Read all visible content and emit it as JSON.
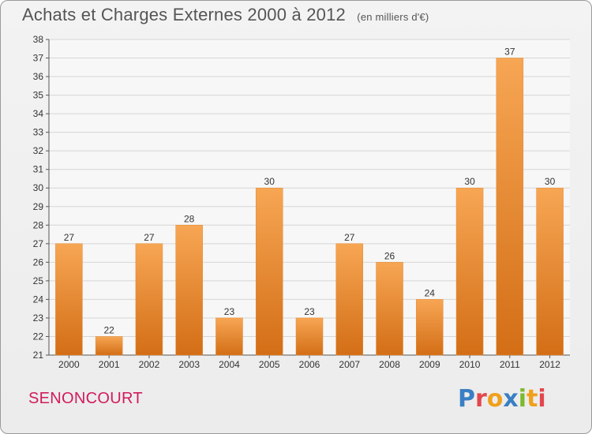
{
  "header": {
    "title": "Achats et Charges Externes 2000 à 2012",
    "unit": "(en milliers d'€)"
  },
  "footer": {
    "place": "SENONCOURT",
    "logo": "Proxiti"
  },
  "colors": {
    "bar_top": "#f7a654",
    "bar_bottom": "#d36e16",
    "place": "#d11b5c",
    "grid": "#d6d6d6",
    "logo_letters": [
      "#3a7fc4",
      "#e2474d",
      "#f0a01c",
      "#3a7fc4",
      "#7cba2c",
      "#f0a01c",
      "#e2474d"
    ]
  },
  "chart_data": {
    "type": "bar",
    "title": "Achats et Charges Externes 2000 à 2012",
    "subtitle": "(en milliers d'€)",
    "categories": [
      "2000",
      "2001",
      "2002",
      "2003",
      "2004",
      "2005",
      "2006",
      "2007",
      "2008",
      "2009",
      "2010",
      "2011",
      "2012"
    ],
    "values": [
      27,
      22,
      27,
      28,
      23,
      30,
      23,
      27,
      26,
      24,
      30,
      37,
      30
    ],
    "ylim": [
      21,
      38
    ],
    "yticks": [
      21,
      22,
      23,
      24,
      25,
      26,
      27,
      28,
      29,
      30,
      31,
      32,
      33,
      34,
      35,
      36,
      37,
      38
    ],
    "grid": true,
    "data_labels": true
  }
}
